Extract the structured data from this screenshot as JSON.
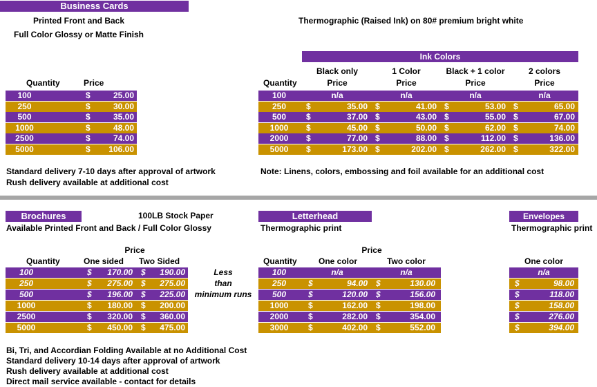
{
  "business_cards": {
    "title": "Business Cards",
    "line1": "Printed Front and Back",
    "line2": "Full Color Glossy or Matte Finish",
    "col_quantity": "Quantity",
    "col_price": "Price",
    "rows": [
      {
        "qty": "100",
        "cur": "$",
        "price": "25.00"
      },
      {
        "qty": "250",
        "cur": "$",
        "price": "30.00"
      },
      {
        "qty": "500",
        "cur": "$",
        "price": "35.00"
      },
      {
        "qty": "1000",
        "cur": "$",
        "price": "48.00"
      },
      {
        "qty": "2500",
        "cur": "$",
        "price": "74.00"
      },
      {
        "qty": "5000",
        "cur": "$",
        "price": "106.00"
      }
    ],
    "note1": "Standard delivery 7-10 days after approval of artwork",
    "note2": "Rush delivery available at additional cost"
  },
  "thermo": {
    "title": "Thermographic  (Raised Ink) on  80# premium bright white",
    "ink_header": "Ink Colors",
    "col_quantity": "Quantity",
    "cols": [
      "Black only",
      "1 Color",
      "Black + 1 color",
      "2 colors"
    ],
    "price_label": "Price",
    "rows": [
      {
        "qty": "100",
        "vals": [
          "n/a",
          "n/a",
          "n/a",
          "n/a"
        ],
        "cur": [
          "",
          "",
          "",
          ""
        ]
      },
      {
        "qty": "250",
        "vals": [
          "35.00",
          "41.00",
          "53.00",
          "65.00"
        ],
        "cur": [
          "$",
          "$",
          "$",
          "$"
        ]
      },
      {
        "qty": "500",
        "vals": [
          "37.00",
          "43.00",
          "55.00",
          "67.00"
        ],
        "cur": [
          "$",
          "$",
          "$",
          "$"
        ]
      },
      {
        "qty": "1000",
        "vals": [
          "45.00",
          "50.00",
          "62.00",
          "74.00"
        ],
        "cur": [
          "$",
          "$",
          "$",
          "$"
        ]
      },
      {
        "qty": "2000",
        "vals": [
          "77.00",
          "88.00",
          "112.00",
          "136.00"
        ],
        "cur": [
          "$",
          "$",
          "$",
          "$"
        ]
      },
      {
        "qty": "5000",
        "vals": [
          "173.00",
          "202.00",
          "262.00",
          "322.00"
        ],
        "cur": [
          "$",
          "$",
          "$",
          "$"
        ]
      }
    ],
    "note": "Note: Linens, colors, embossing and foil available for an additional cost"
  },
  "brochures": {
    "title": "Brochures",
    "stock": "100LB Stock Paper",
    "subtitle": "Available Printed Front and Back / Full Color Glossy",
    "price_label": "Price",
    "col_quantity": "Quantity",
    "col_one": "One sided",
    "col_two": "Two Sided",
    "rows": [
      {
        "qty": "100",
        "c1": "$",
        "v1": "170.00",
        "c2": "$",
        "v2": "190.00",
        "italic": true
      },
      {
        "qty": "250",
        "c1": "$",
        "v1": "275.00",
        "c2": "$",
        "v2": "275.00",
        "italic": true
      },
      {
        "qty": "500",
        "c1": "$",
        "v1": "196.00",
        "c2": "$",
        "v2": "225.00",
        "italic": true
      },
      {
        "qty": "1000",
        "c1": "$",
        "v1": "180.00",
        "c2": "$",
        "v2": "200.00",
        "italic": false
      },
      {
        "qty": "2500",
        "c1": "$",
        "v1": "320.00",
        "c2": "$",
        "v2": "360.00",
        "italic": false
      },
      {
        "qty": "5000",
        "c1": "$",
        "v1": "450.00",
        "c2": "$",
        "v2": "475.00",
        "italic": false
      }
    ],
    "less1": "Less",
    "less2": "than",
    "less3": "minimum runs",
    "notes": [
      "Bi, Tri, and Accordian Folding Available at no Additional Cost",
      "Standard delivery 10-14 days after approval of artwork",
      "Rush delivery available at additional cost",
      "Direct mail service available - contact for details"
    ]
  },
  "letterhead": {
    "title": "Letterhead",
    "subtitle": "Thermographic print",
    "price_label": "Price",
    "col_quantity": "Quantity",
    "col_one": "One color",
    "col_two": "Two color",
    "rows": [
      {
        "qty": "100",
        "c1": "",
        "v1": "n/a",
        "c2": "",
        "v2": "n/a",
        "italic": true
      },
      {
        "qty": "250",
        "c1": "$",
        "v1": "94.00",
        "c2": "$",
        "v2": "130.00",
        "italic": true
      },
      {
        "qty": "500",
        "c1": "$",
        "v1": "120.00",
        "c2": "$",
        "v2": "156.00",
        "italic": true
      },
      {
        "qty": "1000",
        "c1": "$",
        "v1": "162.00",
        "c2": "$",
        "v2": "198.00",
        "italic": false
      },
      {
        "qty": "2000",
        "c1": "$",
        "v1": "282.00",
        "c2": "$",
        "v2": "354.00",
        "italic": false
      },
      {
        "qty": "3000",
        "c1": "$",
        "v1": "402.00",
        "c2": "$",
        "v2": "552.00",
        "italic": false
      }
    ]
  },
  "envelopes": {
    "title": "Envelopes",
    "subtitle": "Thermographic print",
    "col_one": "One color",
    "rows": [
      {
        "c": "",
        "v": "n/a"
      },
      {
        "c": "$",
        "v": "98.00"
      },
      {
        "c": "$",
        "v": "118.00"
      },
      {
        "c": "$",
        "v": "158.00"
      },
      {
        "c": "$",
        "v": "276.00"
      },
      {
        "c": "$",
        "v": "394.00"
      }
    ]
  },
  "colors": {
    "purple": "#7030a0",
    "gold": "#c99200",
    "separator": "#a6a6a6"
  }
}
